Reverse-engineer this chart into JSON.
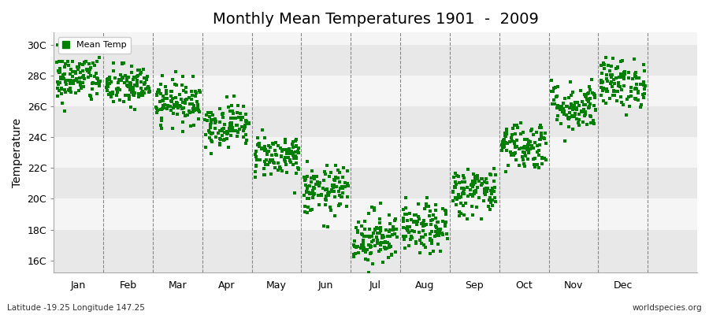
{
  "title": "Monthly Mean Temperatures 1901  -  2009",
  "ylabel": "Temperature",
  "bottom_left": "Latitude -19.25 Longitude 147.25",
  "bottom_right": "worldspecies.org",
  "legend_label": "Mean Temp",
  "marker_color": "#008000",
  "bg_color": "#ffffff",
  "plot_bg": "#ffffff",
  "band_colors": [
    "#e8e8e8",
    "#f5f5f5"
  ],
  "ytick_labels": [
    "16C",
    "18C",
    "20C",
    "22C",
    "24C",
    "26C",
    "28C",
    "30C"
  ],
  "ytick_values": [
    16,
    18,
    20,
    22,
    24,
    26,
    28,
    30
  ],
  "ylim": [
    15.2,
    30.8
  ],
  "xlim": [
    -0.5,
    12.5
  ],
  "month_labels": [
    "Jan",
    "Feb",
    "Mar",
    "Apr",
    "May",
    "Jun",
    "Jul",
    "Aug",
    "Sep",
    "Oct",
    "Nov",
    "Dec"
  ],
  "month_means": [
    27.8,
    27.3,
    26.3,
    24.8,
    22.8,
    20.5,
    17.5,
    18.0,
    20.5,
    23.5,
    26.0,
    27.5
  ],
  "month_stds": [
    0.8,
    0.7,
    0.7,
    0.7,
    0.7,
    0.8,
    0.9,
    0.8,
    0.8,
    0.8,
    0.8,
    0.8
  ],
  "n_years": 109,
  "random_seed": 42,
  "title_fontsize": 14,
  "axis_fontsize": 9,
  "ylabel_fontsize": 10
}
